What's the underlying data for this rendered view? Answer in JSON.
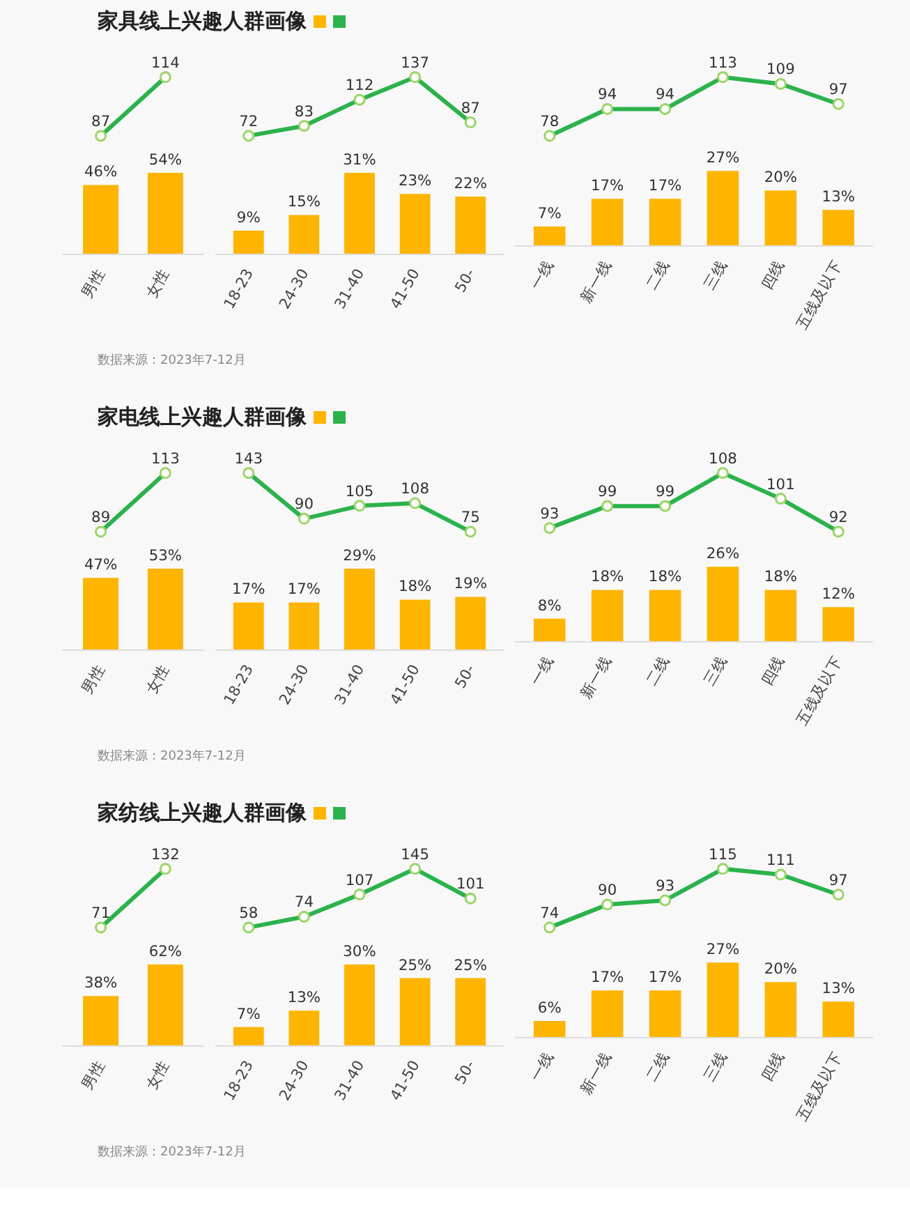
{
  "chart_data": [
    {
      "type": "line",
      "title": "家具线上兴趣人群画像",
      "annotations": [
        "数据来源：2023年7-12月"
      ],
      "categories": [
        null,
        null
      ],
      "tick_labels": false,
      "data_labels": true,
      "grid": false,
      "marker": "circle",
      "line_style": "solid",
      "color": "#2bb24c",
      "values": [
        87,
        114
      ]
    },
    {
      "type": "bar",
      "categories": [
        "男性",
        "女性"
      ],
      "grid": false,
      "color": "#ffb400",
      "values": [
        46,
        54
      ],
      "value_labels": [
        "46%",
        "54%"
      ]
    },
    {
      "type": "line",
      "categories": [
        null,
        null,
        null,
        null,
        null
      ],
      "tick_labels": false,
      "data_labels": true,
      "grid": false,
      "marker": "circle",
      "line_style": "solid",
      "color": "#2bb24c",
      "values": [
        72,
        83,
        112,
        137,
        87
      ]
    },
    {
      "type": "bar",
      "categories": [
        "18-23",
        "24-30",
        "31-40",
        "41-50",
        "50-"
      ],
      "grid": false,
      "color": "#ffb400",
      "values": [
        9,
        15,
        31,
        23,
        22
      ],
      "value_labels": [
        "9%",
        "15%",
        "31%",
        "23%",
        "22%"
      ]
    },
    {
      "type": "line",
      "categories": [
        null,
        null,
        null,
        null,
        null,
        null
      ],
      "tick_labels": false,
      "data_labels": true,
      "grid": false,
      "marker": "circle",
      "line_style": "solid",
      "color": "#2bb24c",
      "values": [
        78,
        94,
        94,
        113,
        109,
        97
      ]
    },
    {
      "type": "bar",
      "categories": [
        "一线",
        "新一线",
        "二线",
        "三线",
        "四线",
        "五线及以下"
      ],
      "grid": false,
      "color": "#ffb400",
      "values": [
        7,
        17,
        17,
        27,
        20,
        13
      ],
      "value_labels": [
        "7%",
        "17%",
        "17%",
        "27%",
        "20%",
        "13%"
      ]
    },
    {
      "type": "line",
      "title": "家电线上兴趣人群画像",
      "annotations": [
        "数据来源：2023年7-12月"
      ],
      "categories": [
        null,
        null
      ],
      "tick_labels": false,
      "data_labels": true,
      "grid": false,
      "marker": "circle",
      "line_style": "solid",
      "color": "#2bb24c",
      "values": [
        89,
        113
      ]
    },
    {
      "type": "bar",
      "categories": [
        "男性",
        "女性"
      ],
      "grid": false,
      "color": "#ffb400",
      "values": [
        47,
        53
      ],
      "value_labels": [
        "47%",
        "53%"
      ]
    },
    {
      "type": "line",
      "categories": [
        null,
        null,
        null,
        null,
        null
      ],
      "tick_labels": false,
      "data_labels": true,
      "grid": false,
      "marker": "circle",
      "line_style": "solid",
      "color": "#2bb24c",
      "values": [
        143,
        90,
        105,
        108,
        75
      ]
    },
    {
      "type": "bar",
      "categories": [
        "18-23",
        "24-30",
        "31-40",
        "41-50",
        "50-"
      ],
      "grid": false,
      "color": "#ffb400",
      "values": [
        17,
        17,
        29,
        18,
        19
      ],
      "value_labels": [
        "17%",
        "17%",
        "29%",
        "18%",
        "19%"
      ]
    },
    {
      "type": "line",
      "categories": [
        null,
        null,
        null,
        null,
        null,
        null
      ],
      "tick_labels": false,
      "data_labels": true,
      "grid": false,
      "marker": "circle",
      "line_style": "solid",
      "color": "#2bb24c",
      "values": [
        93,
        99,
        99,
        108,
        101,
        92
      ]
    },
    {
      "type": "bar",
      "categories": [
        "一线",
        "新一线",
        "二线",
        "三线",
        "四线",
        "五线及以下"
      ],
      "grid": false,
      "color": "#ffb400",
      "values": [
        8,
        18,
        18,
        26,
        18,
        12
      ],
      "value_labels": [
        "8%",
        "18%",
        "18%",
        "26%",
        "18%",
        "12%"
      ]
    },
    {
      "type": "line",
      "title": "家纺线上兴趣人群画像",
      "annotations": [
        "数据来源：2023年7-12月"
      ],
      "categories": [
        null,
        null
      ],
      "tick_labels": false,
      "data_labels": true,
      "grid": false,
      "marker": "circle",
      "line_style": "solid",
      "color": "#2bb24c",
      "values": [
        71,
        132
      ]
    },
    {
      "type": "bar",
      "categories": [
        "男性",
        "女性"
      ],
      "grid": false,
      "color": "#ffb400",
      "values": [
        38,
        62
      ],
      "value_labels": [
        "38%",
        "62%"
      ]
    },
    {
      "type": "line",
      "categories": [
        null,
        null,
        null,
        null,
        null
      ],
      "tick_labels": false,
      "data_labels": true,
      "grid": false,
      "marker": "circle",
      "line_style": "solid",
      "color": "#2bb24c",
      "values": [
        58,
        74,
        107,
        145,
        101
      ]
    },
    {
      "type": "bar",
      "categories": [
        "18-23",
        "24-30",
        "31-40",
        "41-50",
        "50-"
      ],
      "grid": false,
      "color": "#ffb400",
      "values": [
        7,
        13,
        30,
        25,
        25
      ],
      "value_labels": [
        "7%",
        "13%",
        "30%",
        "25%",
        "25%"
      ]
    },
    {
      "type": "line",
      "categories": [
        null,
        null,
        null,
        null,
        null,
        null
      ],
      "tick_labels": false,
      "data_labels": true,
      "grid": false,
      "marker": "circle",
      "line_style": "solid",
      "color": "#2bb24c",
      "values": [
        74,
        90,
        93,
        115,
        111,
        97
      ]
    },
    {
      "type": "bar",
      "categories": [
        "一线",
        "新一线",
        "二线",
        "三线",
        "四线",
        "五线及以下"
      ],
      "grid": false,
      "color": "#ffb400",
      "values": [
        6,
        17,
        17,
        27,
        20,
        13
      ],
      "value_labels": [
        "6%",
        "17%",
        "17%",
        "27%",
        "20%",
        "13%"
      ]
    }
  ]
}
